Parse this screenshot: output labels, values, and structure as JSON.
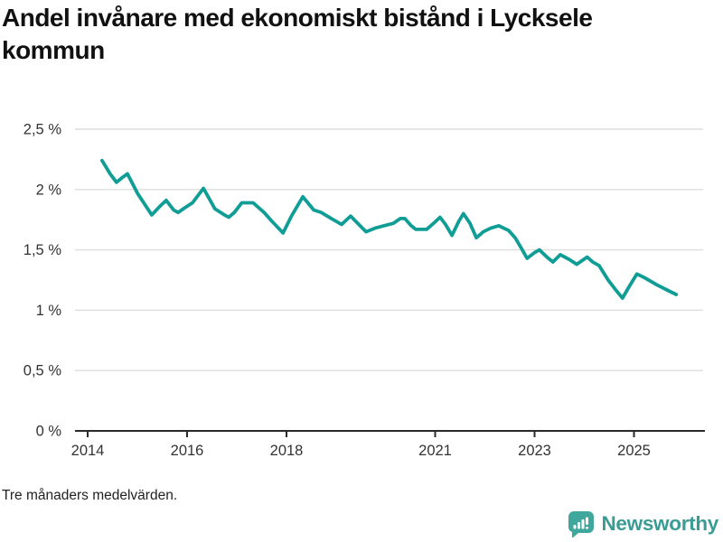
{
  "header": {
    "title": "Andel invånare med ekonomiskt bistånd i Lycksele kommun"
  },
  "footer": {
    "note": "Tre månaders medelvärden."
  },
  "branding": {
    "name": "Newsworthy",
    "icon": "newsworthy-speech-bubble-bar-chart-icon",
    "icon_color": "#3fa79c",
    "text_color": "#3a9c93"
  },
  "chart_data": {
    "type": "line",
    "title": "Andel invånare med ekonomiskt bistånd i Lycksele kommun",
    "subtitle_note": "Tre månaders medelvärden.",
    "unit": "%",
    "grid": true,
    "legend": "none",
    "x_axis": {
      "range_years": [
        2013.75,
        2026.0
      ],
      "ticks": [
        {
          "label": "2014",
          "year": 2014
        },
        {
          "label": "2016",
          "year": 2016
        },
        {
          "label": "2018",
          "year": 2018
        },
        {
          "label": "2021",
          "year": 2021
        },
        {
          "label": "2023",
          "year": 2023
        },
        {
          "label": "2025",
          "year": 2025
        }
      ]
    },
    "y_axis": {
      "range": [
        0,
        2.5
      ],
      "ticks": [
        {
          "label": "2,5 %",
          "value": 2.5
        },
        {
          "label": "2 %",
          "value": 2.0
        },
        {
          "label": "1,5 %",
          "value": 1.5
        },
        {
          "label": "1 %",
          "value": 1.0
        },
        {
          "label": "0,5 %",
          "value": 0.5
        },
        {
          "label": "0 %",
          "value": 0.0
        }
      ]
    },
    "series": [
      {
        "name": "Andel invånare med ekonomiskt bistånd",
        "color": "#0f9d95",
        "points": [
          [
            2014.29,
            2.24
          ],
          [
            2014.45,
            2.13
          ],
          [
            2014.58,
            2.06
          ],
          [
            2014.7,
            2.1
          ],
          [
            2014.8,
            2.13
          ],
          [
            2015.0,
            1.97
          ],
          [
            2015.29,
            1.79
          ],
          [
            2015.45,
            1.86
          ],
          [
            2015.58,
            1.91
          ],
          [
            2015.73,
            1.83
          ],
          [
            2015.82,
            1.81
          ],
          [
            2015.96,
            1.85
          ],
          [
            2016.11,
            1.89
          ],
          [
            2016.33,
            2.01
          ],
          [
            2016.56,
            1.84
          ],
          [
            2016.75,
            1.79
          ],
          [
            2016.84,
            1.77
          ],
          [
            2016.95,
            1.81
          ],
          [
            2017.1,
            1.89
          ],
          [
            2017.33,
            1.89
          ],
          [
            2017.55,
            1.81
          ],
          [
            2017.7,
            1.74
          ],
          [
            2017.93,
            1.64
          ],
          [
            2018.1,
            1.78
          ],
          [
            2018.33,
            1.94
          ],
          [
            2018.55,
            1.83
          ],
          [
            2018.7,
            1.81
          ],
          [
            2018.9,
            1.76
          ],
          [
            2019.11,
            1.71
          ],
          [
            2019.29,
            1.78
          ],
          [
            2019.6,
            1.65
          ],
          [
            2019.78,
            1.68
          ],
          [
            2019.96,
            1.7
          ],
          [
            2020.15,
            1.72
          ],
          [
            2020.29,
            1.76
          ],
          [
            2020.38,
            1.76
          ],
          [
            2020.51,
            1.7
          ],
          [
            2020.6,
            1.67
          ],
          [
            2020.82,
            1.67
          ],
          [
            2020.96,
            1.72
          ],
          [
            2021.09,
            1.77
          ],
          [
            2021.2,
            1.71
          ],
          [
            2021.33,
            1.62
          ],
          [
            2021.47,
            1.74
          ],
          [
            2021.56,
            1.8
          ],
          [
            2021.69,
            1.72
          ],
          [
            2021.82,
            1.6
          ],
          [
            2021.96,
            1.65
          ],
          [
            2022.11,
            1.68
          ],
          [
            2022.27,
            1.7
          ],
          [
            2022.47,
            1.66
          ],
          [
            2022.6,
            1.6
          ],
          [
            2022.73,
            1.51
          ],
          [
            2022.84,
            1.43
          ],
          [
            2023.0,
            1.48
          ],
          [
            2023.09,
            1.5
          ],
          [
            2023.24,
            1.44
          ],
          [
            2023.36,
            1.4
          ],
          [
            2023.51,
            1.46
          ],
          [
            2023.69,
            1.42
          ],
          [
            2023.84,
            1.38
          ],
          [
            2024.05,
            1.44
          ],
          [
            2024.16,
            1.4
          ],
          [
            2024.29,
            1.37
          ],
          [
            2024.47,
            1.25
          ],
          [
            2024.62,
            1.17
          ],
          [
            2024.76,
            1.1
          ],
          [
            2024.9,
            1.2
          ],
          [
            2025.05,
            1.3
          ],
          [
            2025.2,
            1.27
          ],
          [
            2025.45,
            1.21
          ],
          [
            2025.69,
            1.16
          ],
          [
            2025.84,
            1.13
          ]
        ]
      }
    ]
  }
}
